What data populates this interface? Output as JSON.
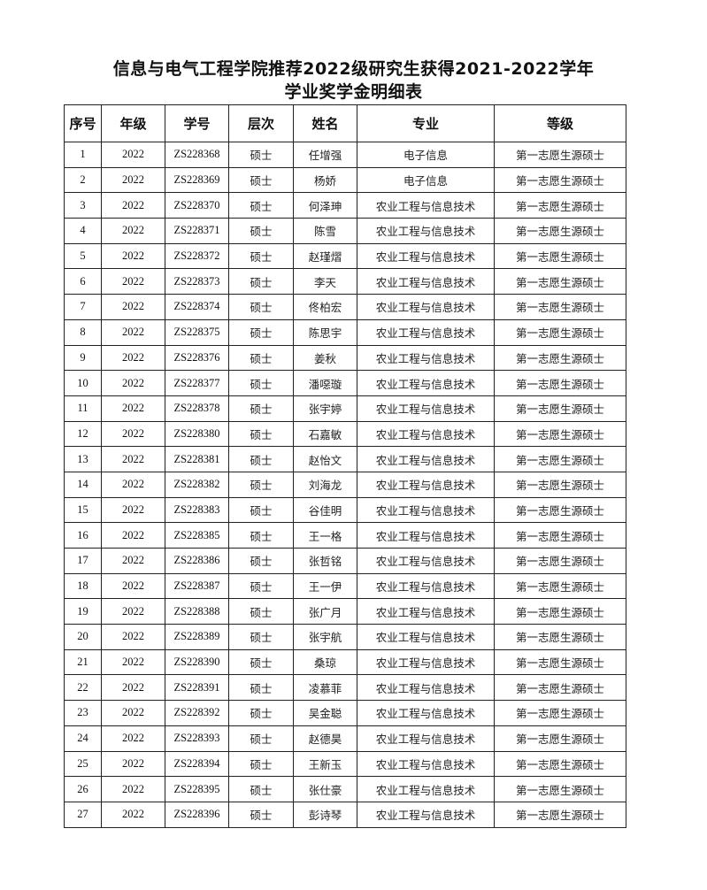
{
  "title": {
    "line1": "信息与电气工程学院推荐2022级研究生获得2021-2022学年",
    "line2": "学业奖学金明细表"
  },
  "table": {
    "headers": [
      "序号",
      "年级",
      "学号",
      "层次",
      "姓名",
      "专业",
      "等级"
    ],
    "rows": [
      [
        "1",
        "2022",
        "ZS228368",
        "硕士",
        "任增强",
        "电子信息",
        "第一志愿生源硕士"
      ],
      [
        "2",
        "2022",
        "ZS228369",
        "硕士",
        "杨娇",
        "电子信息",
        "第一志愿生源硕士"
      ],
      [
        "3",
        "2022",
        "ZS228370",
        "硕士",
        "何泽珅",
        "农业工程与信息技术",
        "第一志愿生源硕士"
      ],
      [
        "4",
        "2022",
        "ZS228371",
        "硕士",
        "陈雪",
        "农业工程与信息技术",
        "第一志愿生源硕士"
      ],
      [
        "5",
        "2022",
        "ZS228372",
        "硕士",
        "赵瑾熠",
        "农业工程与信息技术",
        "第一志愿生源硕士"
      ],
      [
        "6",
        "2022",
        "ZS228373",
        "硕士",
        "李天",
        "农业工程与信息技术",
        "第一志愿生源硕士"
      ],
      [
        "7",
        "2022",
        "ZS228374",
        "硕士",
        "佟柏宏",
        "农业工程与信息技术",
        "第一志愿生源硕士"
      ],
      [
        "8",
        "2022",
        "ZS228375",
        "硕士",
        "陈思宇",
        "农业工程与信息技术",
        "第一志愿生源硕士"
      ],
      [
        "9",
        "2022",
        "ZS228376",
        "硕士",
        "姜秋",
        "农业工程与信息技术",
        "第一志愿生源硕士"
      ],
      [
        "10",
        "2022",
        "ZS228377",
        "硕士",
        "潘噁璇",
        "农业工程与信息技术",
        "第一志愿生源硕士"
      ],
      [
        "11",
        "2022",
        "ZS228378",
        "硕士",
        "张宇婷",
        "农业工程与信息技术",
        "第一志愿生源硕士"
      ],
      [
        "12",
        "2022",
        "ZS228380",
        "硕士",
        "石嘉敏",
        "农业工程与信息技术",
        "第一志愿生源硕士"
      ],
      [
        "13",
        "2022",
        "ZS228381",
        "硕士",
        "赵怡文",
        "农业工程与信息技术",
        "第一志愿生源硕士"
      ],
      [
        "14",
        "2022",
        "ZS228382",
        "硕士",
        "刘海龙",
        "农业工程与信息技术",
        "第一志愿生源硕士"
      ],
      [
        "15",
        "2022",
        "ZS228383",
        "硕士",
        "谷佳明",
        "农业工程与信息技术",
        "第一志愿生源硕士"
      ],
      [
        "16",
        "2022",
        "ZS228385",
        "硕士",
        "王一格",
        "农业工程与信息技术",
        "第一志愿生源硕士"
      ],
      [
        "17",
        "2022",
        "ZS228386",
        "硕士",
        "张哲铭",
        "农业工程与信息技术",
        "第一志愿生源硕士"
      ],
      [
        "18",
        "2022",
        "ZS228387",
        "硕士",
        "王一伊",
        "农业工程与信息技术",
        "第一志愿生源硕士"
      ],
      [
        "19",
        "2022",
        "ZS228388",
        "硕士",
        "张广月",
        "农业工程与信息技术",
        "第一志愿生源硕士"
      ],
      [
        "20",
        "2022",
        "ZS228389",
        "硕士",
        "张宇航",
        "农业工程与信息技术",
        "第一志愿生源硕士"
      ],
      [
        "21",
        "2022",
        "ZS228390",
        "硕士",
        "桑琼",
        "农业工程与信息技术",
        "第一志愿生源硕士"
      ],
      [
        "22",
        "2022",
        "ZS228391",
        "硕士",
        "凌慕菲",
        "农业工程与信息技术",
        "第一志愿生源硕士"
      ],
      [
        "23",
        "2022",
        "ZS228392",
        "硕士",
        "吴金聪",
        "农业工程与信息技术",
        "第一志愿生源硕士"
      ],
      [
        "24",
        "2022",
        "ZS228393",
        "硕士",
        "赵德昊",
        "农业工程与信息技术",
        "第一志愿生源硕士"
      ],
      [
        "25",
        "2022",
        "ZS228394",
        "硕士",
        "王新玉",
        "农业工程与信息技术",
        "第一志愿生源硕士"
      ],
      [
        "26",
        "2022",
        "ZS228395",
        "硕士",
        "张仕豪",
        "农业工程与信息技术",
        "第一志愿生源硕士"
      ],
      [
        "27",
        "2022",
        "ZS228396",
        "硕士",
        "彭诗琴",
        "农业工程与信息技术",
        "第一志愿生源硕士"
      ]
    ]
  }
}
